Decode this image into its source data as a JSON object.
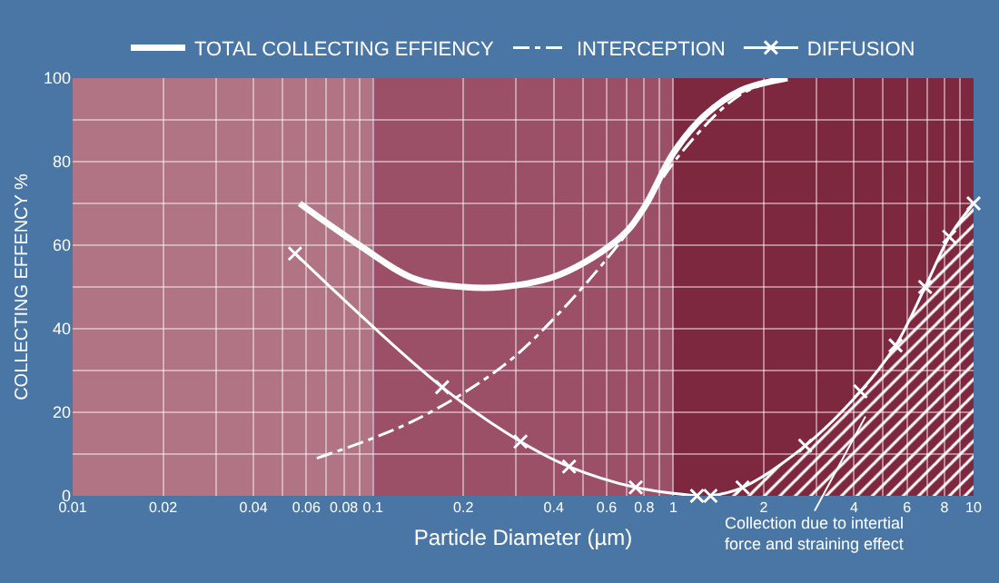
{
  "chart_data": {
    "type": "line",
    "xlabel": "Particle Diameter (µm)",
    "ylabel": "COLLECTING EFFENCY %",
    "log": "x",
    "xlim": [
      0.01,
      10
    ],
    "xticks": [
      0.01,
      0.02,
      {
        "value": 0.03,
        "label": null
      },
      0.04,
      {
        "value": 0.05,
        "label": null
      },
      0.06,
      {
        "value": 0.07,
        "label": null
      },
      0.08,
      {
        "value": 0.09,
        "label": null
      },
      0.1,
      0.2,
      {
        "value": 0.3,
        "label": null
      },
      0.4,
      {
        "value": 0.5,
        "label": null
      },
      0.6,
      {
        "value": 0.7,
        "label": null
      },
      0.8,
      {
        "value": 0.9,
        "label": null
      },
      1,
      2,
      {
        "value": 3,
        "label": null
      },
      4,
      {
        "value": 5,
        "label": null
      },
      6,
      {
        "value": 7,
        "label": null
      },
      8,
      {
        "value": 9,
        "label": null
      },
      10
    ],
    "ylim": [
      0,
      100
    ],
    "yticks": [
      0,
      {
        "value": 10,
        "label": null
      },
      20,
      {
        "value": 30,
        "label": null
      },
      40,
      {
        "value": 50,
        "label": null
      },
      60,
      {
        "value": 70,
        "label": null
      },
      80,
      {
        "value": 90,
        "label": null
      },
      100
    ],
    "grid": true,
    "legend": "top",
    "bands": [
      {
        "axis": "x",
        "from": 0.01,
        "to": 0.1,
        "color": "#b07484"
      },
      {
        "axis": "x",
        "from": 0.1,
        "to": 1,
        "color": "#9c5068"
      },
      {
        "axis": "x",
        "from": 1,
        "to": 10,
        "color": "#7e2840"
      }
    ],
    "series": [
      {
        "name": "TOTAL COLLECTING EFFIENCY",
        "color": "#ffffff",
        "line_style": "solid",
        "marker": "none",
        "x": [
          0.057,
          0.09,
          0.137,
          0.2,
          0.27,
          0.42,
          0.67,
          0.8,
          1,
          1.27,
          1.67,
          2.4
        ],
        "values": [
          70,
          60,
          52,
          50,
          50,
          53,
          62,
          69,
          82,
          91,
          97,
          100
        ]
      },
      {
        "name": "INTERCEPTION",
        "color": "#ffffff",
        "line_style": "dashed",
        "marker": "none",
        "x": [
          0.065,
          0.137,
          0.27,
          0.42,
          0.67,
          0.78,
          1.06,
          1.67,
          2.4
        ],
        "values": [
          9,
          18,
          31,
          44,
          61,
          68,
          82,
          96,
          100
        ]
      },
      {
        "name": "DIFFUSION",
        "color": "#ffffff",
        "line_style": "solid",
        "marker": "cross",
        "x": [
          0.055,
          0.17,
          0.31,
          0.45,
          0.75,
          1.2
        ],
        "values": [
          58,
          26,
          13,
          7,
          2,
          0
        ]
      },
      {
        "type": "area",
        "color": "#ffffff",
        "line_style": "solid",
        "marker": "cross",
        "x": [
          1.33,
          1.7,
          2.75,
          4.2,
          5.5,
          6.9,
          8.3,
          10
        ],
        "values": [
          0,
          2,
          12,
          25,
          36,
          50,
          62,
          70
        ]
      }
    ],
    "annotations": [
      "Collection due to intertial\nforce and straining effect"
    ]
  }
}
